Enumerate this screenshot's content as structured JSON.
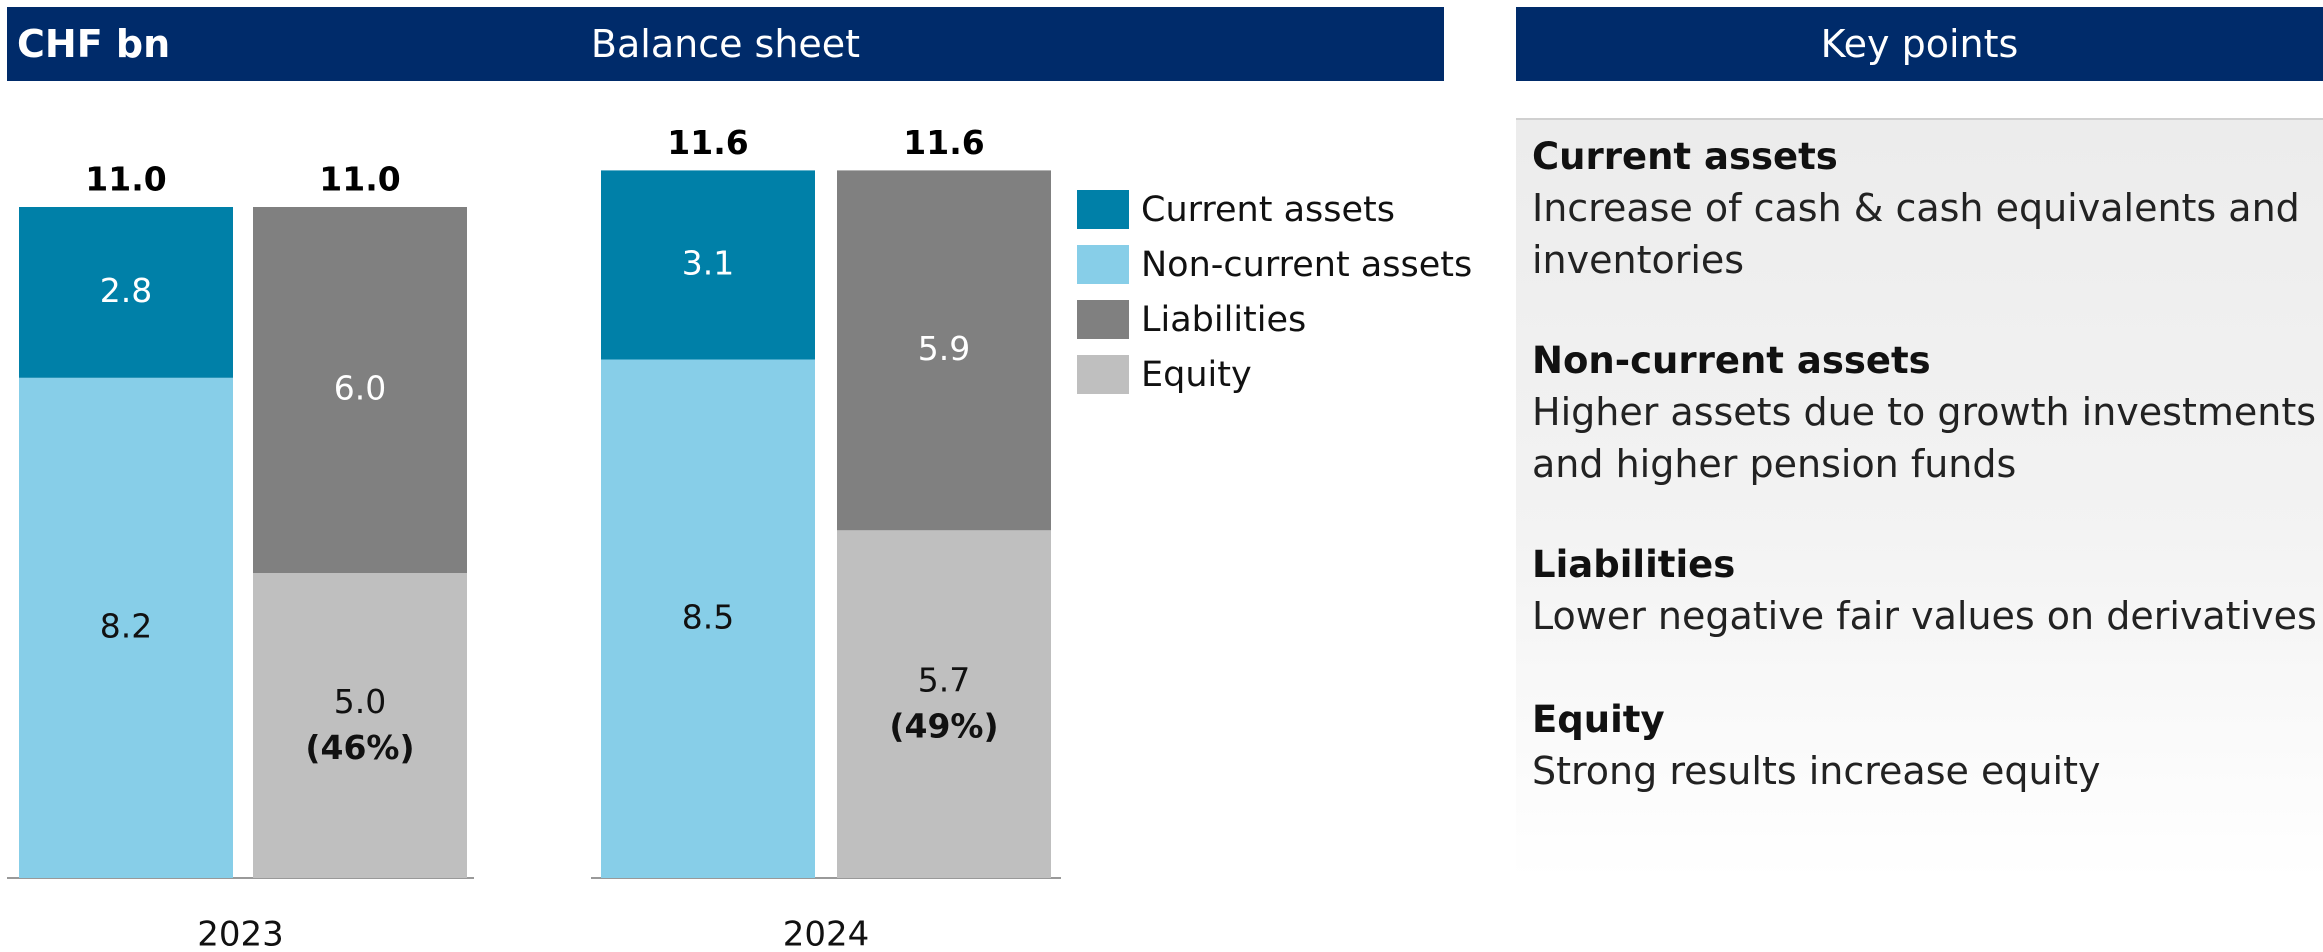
{
  "unit": "CHF bn",
  "chart_data": {
    "type": "stacked-bar",
    "title": "Balance sheet",
    "categories": [
      "2023",
      "2024"
    ],
    "series": [
      {
        "name": "Current assets",
        "color": "#0080a8",
        "stack": 0,
        "values": [
          2.8,
          3.1
        ],
        "value_labels": [
          "2.8",
          "3.1"
        ]
      },
      {
        "name": "Non-current assets",
        "color": "#87cee8",
        "stack": 0,
        "values": [
          8.2,
          8.5
        ],
        "value_labels": [
          "8.2",
          "8.5"
        ]
      },
      {
        "name": "Liabilities",
        "color": "#808080",
        "stack": 1,
        "values": [
          6.0,
          5.9
        ],
        "value_labels": [
          "6.0",
          "5.9"
        ]
      },
      {
        "name": "Equity",
        "color": "#bfbfbf",
        "stack": 1,
        "values": [
          5.0,
          5.7
        ],
        "value_labels": [
          "5.0",
          "5.7"
        ]
      }
    ],
    "totals": [
      {
        "values": [
          11.0,
          11.6
        ],
        "value_labels": [
          "11.0",
          "11.6"
        ]
      },
      {
        "values": [
          11.0,
          11.6
        ],
        "value_labels": [
          "11.0",
          "11.6"
        ]
      }
    ],
    "equity_share": {
      "values": [
        46,
        49
      ],
      "value_labels": [
        "(46%)",
        "(49%)"
      ]
    }
  },
  "key_points": {
    "title": "Key points",
    "items": [
      {
        "heading": "Current assets",
        "lines": [
          "Increase of cash & cash equivalents and",
          "inventories"
        ]
      },
      {
        "heading": "Non-current assets",
        "lines": [
          "Higher assets due to growth investments",
          "and higher pension funds"
        ]
      },
      {
        "heading": "Liabilities",
        "lines": [
          "Lower negative fair values on derivatives"
        ]
      },
      {
        "heading": "Equity",
        "lines": [
          "Strong results increase equity"
        ]
      }
    ]
  }
}
